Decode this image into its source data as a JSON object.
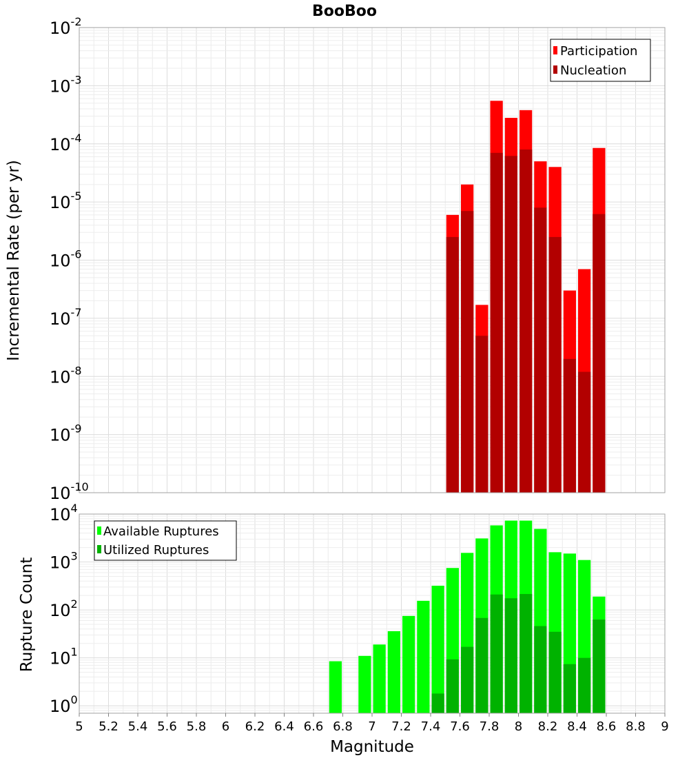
{
  "chart_data": [
    {
      "type": "bar",
      "title": "BooBoo",
      "ylabel": "Incremental Rate (per yr)",
      "xlabel": "",
      "yscale": "log",
      "ylim": [
        1e-10,
        0.01
      ],
      "xlim": [
        5,
        9
      ],
      "grid": true,
      "legend_position": "top-right",
      "bin_width": 0.1,
      "x": [
        7.55,
        7.65,
        7.75,
        7.85,
        7.95,
        8.05,
        8.15,
        8.25,
        8.35,
        8.45,
        8.55
      ],
      "series": [
        {
          "name": "Participation",
          "color": "#ff0000",
          "values": [
            6e-06,
            2e-05,
            1.7e-07,
            0.00055,
            0.00028,
            0.00038,
            5e-05,
            4e-05,
            3e-07,
            7e-07,
            8.5e-05
          ]
        },
        {
          "name": "Nucleation",
          "color": "#b20000",
          "values": [
            2.5e-06,
            7e-06,
            5e-08,
            7e-05,
            6.2e-05,
            8e-05,
            8e-06,
            2.5e-06,
            2e-08,
            1.2e-08,
            6.2e-06
          ]
        }
      ],
      "yticks": [
        {
          "base": "10",
          "exp": "-2",
          "value": 0.01
        },
        {
          "base": "10",
          "exp": "-3",
          "value": 0.001
        },
        {
          "base": "10",
          "exp": "-4",
          "value": 0.0001
        },
        {
          "base": "10",
          "exp": "-5",
          "value": 1e-05
        },
        {
          "base": "10",
          "exp": "-6",
          "value": 1e-06
        },
        {
          "base": "10",
          "exp": "-7",
          "value": 1e-07
        },
        {
          "base": "10",
          "exp": "-8",
          "value": 1e-08
        },
        {
          "base": "10",
          "exp": "-9",
          "value": 1e-09
        },
        {
          "base": "10",
          "exp": "-10",
          "value": 1e-10
        }
      ]
    },
    {
      "type": "bar",
      "title": "",
      "ylabel": "Rupture Count",
      "xlabel": "Magnitude",
      "yscale": "log",
      "ylim": [
        0.7,
        10000
      ],
      "xlim": [
        5,
        9
      ],
      "grid": true,
      "legend_position": "top-left",
      "bin_width": 0.1,
      "x": [
        6.75,
        6.95,
        7.05,
        7.15,
        7.25,
        7.35,
        7.45,
        7.55,
        7.65,
        7.75,
        7.85,
        7.95,
        8.05,
        8.15,
        8.25,
        8.35,
        8.45,
        8.55
      ],
      "series": [
        {
          "name": "Available Ruptures",
          "color": "#00ff00",
          "values": [
            8.5,
            11,
            19,
            36,
            75,
            155,
            320,
            750,
            1550,
            3100,
            5800,
            7300,
            7300,
            4900,
            1600,
            1500,
            1100,
            190
          ]
        },
        {
          "name": "Utilized Ruptures",
          "color": "#00b200",
          "values": [
            0,
            0,
            0,
            0,
            0,
            0,
            1.8,
            9.3,
            17,
            68,
            210,
            175,
            215,
            46,
            35,
            7.4,
            10,
            63
          ]
        }
      ],
      "yticks": [
        {
          "base": "10",
          "exp": "4",
          "value": 10000
        },
        {
          "base": "10",
          "exp": "3",
          "value": 1000
        },
        {
          "base": "10",
          "exp": "2",
          "value": 100
        },
        {
          "base": "10",
          "exp": "1",
          "value": 10
        },
        {
          "base": "10",
          "exp": "0",
          "value": 1
        }
      ],
      "xticks": [
        "5",
        "5.2",
        "5.4",
        "5.6",
        "5.8",
        "6",
        "6.2",
        "6.4",
        "6.6",
        "6.8",
        "7",
        "7.2",
        "7.4",
        "7.6",
        "7.8",
        "8",
        "8.2",
        "8.4",
        "8.6",
        "8.8",
        "9"
      ]
    }
  ]
}
